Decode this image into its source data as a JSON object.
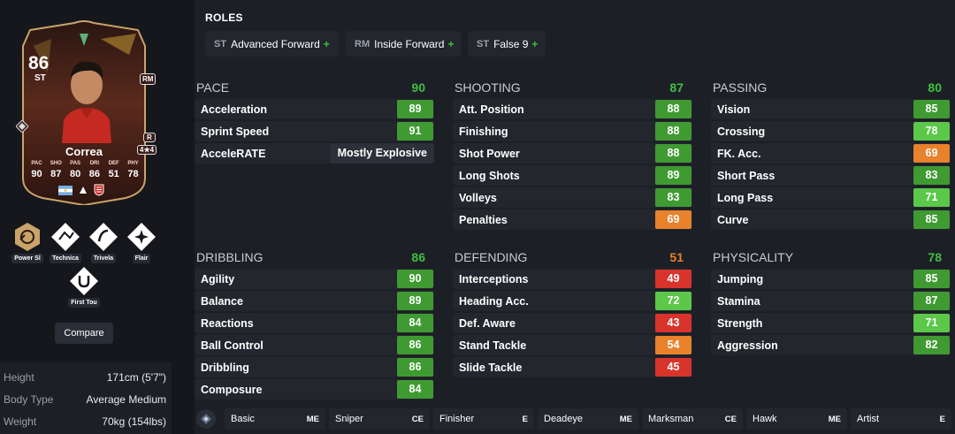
{
  "card": {
    "rating": "86",
    "position": "ST",
    "alt_position": "RM",
    "skill_moves": "R",
    "weak_foot": "4★4",
    "name": "Correa",
    "stat_labels": [
      "PAC",
      "SHO",
      "PAS",
      "DRI",
      "DEF",
      "PHY"
    ],
    "stat_values": [
      "90",
      "87",
      "80",
      "86",
      "51",
      "78"
    ]
  },
  "playstyles": [
    {
      "label": "Power Sl",
      "icon": "power-shot-icon",
      "plus": true
    },
    {
      "label": "Technica",
      "icon": "technical-icon",
      "plus": false
    },
    {
      "label": "Trivela",
      "icon": "trivela-icon",
      "plus": false
    },
    {
      "label": "Flair",
      "icon": "flair-icon",
      "plus": false
    },
    {
      "label": "First Tou",
      "icon": "first-touch-icon",
      "plus": false
    }
  ],
  "compare_label": "Compare",
  "info": [
    {
      "key": "Height",
      "value": "171cm (5'7\")"
    },
    {
      "key": "Body Type",
      "value": "Average Medium"
    },
    {
      "key": "Weight",
      "value": "70kg (154lbs)"
    }
  ],
  "roles_title": "ROLES",
  "roles": [
    {
      "pos": "ST",
      "name": "Advanced Forward",
      "plus": "+"
    },
    {
      "pos": "RM",
      "name": "Inside Forward",
      "plus": "+"
    },
    {
      "pos": "ST",
      "name": "False 9",
      "plus": "+"
    }
  ],
  "groups": {
    "pace": {
      "title": "PACE",
      "value": "90",
      "rows": [
        {
          "name": "Acceleration",
          "value": "89"
        },
        {
          "name": "Sprint Speed",
          "value": "91"
        }
      ],
      "accelerate": {
        "name": "AcceleRATE",
        "value": "Mostly Explosive"
      }
    },
    "shooting": {
      "title": "SHOOTING",
      "value": "87",
      "rows": [
        {
          "name": "Att. Position",
          "value": "88"
        },
        {
          "name": "Finishing",
          "value": "88"
        },
        {
          "name": "Shot Power",
          "value": "88"
        },
        {
          "name": "Long Shots",
          "value": "89"
        },
        {
          "name": "Volleys",
          "value": "83"
        },
        {
          "name": "Penalties",
          "value": "69"
        }
      ]
    },
    "passing": {
      "title": "PASSING",
      "value": "80",
      "rows": [
        {
          "name": "Vision",
          "value": "85"
        },
        {
          "name": "Crossing",
          "value": "78"
        },
        {
          "name": "FK. Acc.",
          "value": "69"
        },
        {
          "name": "Short Pass",
          "value": "83"
        },
        {
          "name": "Long Pass",
          "value": "71"
        },
        {
          "name": "Curve",
          "value": "85"
        }
      ]
    },
    "dribbling": {
      "title": "DRIBBLING",
      "value": "86",
      "rows": [
        {
          "name": "Agility",
          "value": "90"
        },
        {
          "name": "Balance",
          "value": "89"
        },
        {
          "name": "Reactions",
          "value": "84"
        },
        {
          "name": "Ball Control",
          "value": "86"
        },
        {
          "name": "Dribbling",
          "value": "86"
        },
        {
          "name": "Composure",
          "value": "84"
        }
      ]
    },
    "defending": {
      "title": "DEFENDING",
      "value": "51",
      "rows": [
        {
          "name": "Interceptions",
          "value": "49"
        },
        {
          "name": "Heading Acc.",
          "value": "72"
        },
        {
          "name": "Def. Aware",
          "value": "43"
        },
        {
          "name": "Stand Tackle",
          "value": "54"
        },
        {
          "name": "Slide Tackle",
          "value": "45"
        }
      ]
    },
    "physicality": {
      "title": "PHYSICALITY",
      "value": "78",
      "rows": [
        {
          "name": "Jumping",
          "value": "85"
        },
        {
          "name": "Stamina",
          "value": "87"
        },
        {
          "name": "Strength",
          "value": "71"
        },
        {
          "name": "Aggression",
          "value": "82"
        }
      ]
    }
  },
  "chem_styles": [
    {
      "name": "Basic",
      "code": "ME"
    },
    {
      "name": "Sniper",
      "code": "CE"
    },
    {
      "name": "Finisher",
      "code": "E"
    },
    {
      "name": "Deadeye",
      "code": "ME"
    },
    {
      "name": "Marksman",
      "code": "CE"
    },
    {
      "name": "Hawk",
      "code": "ME"
    },
    {
      "name": "Artist",
      "code": "E"
    }
  ],
  "colors": {
    "dark_green": "#3f9a32",
    "light_green": "#5bc84a",
    "orange": "#e8822c",
    "red": "#d8342c",
    "header_green": "#3fbf3f",
    "header_orange": "#e8822c",
    "card_dark": "#3a1d18",
    "card_gold": "#c9a36a"
  }
}
